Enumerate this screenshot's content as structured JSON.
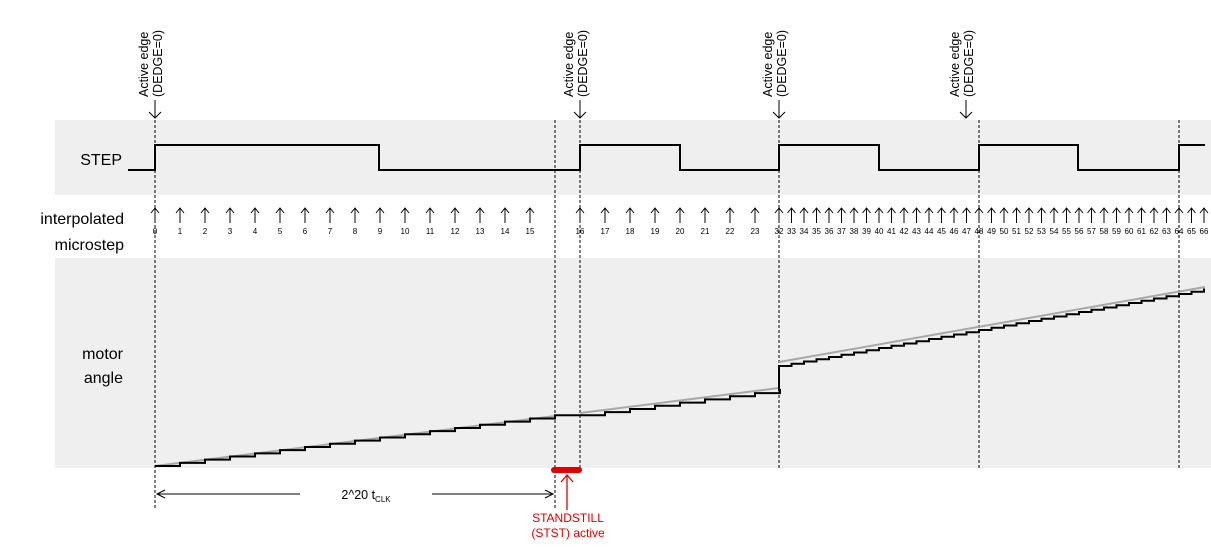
{
  "edge_label": {
    "line1": "Active edge",
    "line2": "(DEDGE=0)"
  },
  "signals": {
    "step": "STEP",
    "microstep_line1": "interpolated",
    "microstep_line2": "microstep",
    "motor_line1": "motor",
    "motor_line2": "angle"
  },
  "timer": {
    "prefix": "2^20 t",
    "subscript": "CLK"
  },
  "standstill": {
    "line1": "STANDSTILL",
    "line2": "(STST) active"
  },
  "microstep_numbers": [
    "0",
    "1",
    "2",
    "3",
    "4",
    "5",
    "6",
    "7",
    "8",
    "9",
    "10",
    "11",
    "12",
    "13",
    "14",
    "15",
    "16",
    "17",
    "18",
    "19",
    "20",
    "21",
    "22",
    "23",
    "32",
    "33",
    "34",
    "35",
    "36",
    "37",
    "38",
    "39",
    "40",
    "41",
    "42",
    "43",
    "44",
    "45",
    "46",
    "47",
    "48",
    "49",
    "50",
    "51",
    "52",
    "53",
    "54",
    "55",
    "56",
    "57",
    "58",
    "59",
    "60",
    "61",
    "62",
    "63",
    "64",
    "65",
    "66"
  ],
  "colors": {
    "band": "#efefef",
    "line": "#000000",
    "standstill": "#e00000",
    "ramp": "#a8a8a8"
  }
}
